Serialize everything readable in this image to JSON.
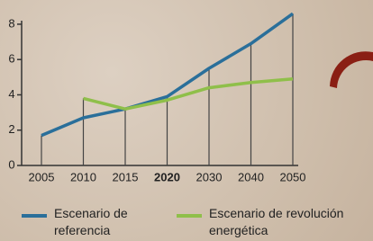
{
  "chart_data": {
    "type": "line",
    "categories": [
      "2005",
      "2010",
      "2015",
      "2020",
      "2030",
      "2040",
      "2050"
    ],
    "series": [
      {
        "name": "Escenario de referencia",
        "color": "#2a6f9a",
        "values": [
          1.7,
          2.7,
          3.2,
          3.9,
          5.5,
          6.9,
          8.6
        ]
      },
      {
        "name": "Escenario de revolución energética",
        "color": "#8fbf4a",
        "values": [
          null,
          3.8,
          3.2,
          3.7,
          4.4,
          4.7,
          4.9
        ]
      }
    ],
    "ylim": [
      0,
      8.2
    ],
    "yticks": [
      0,
      2,
      4,
      6,
      8
    ]
  }
}
